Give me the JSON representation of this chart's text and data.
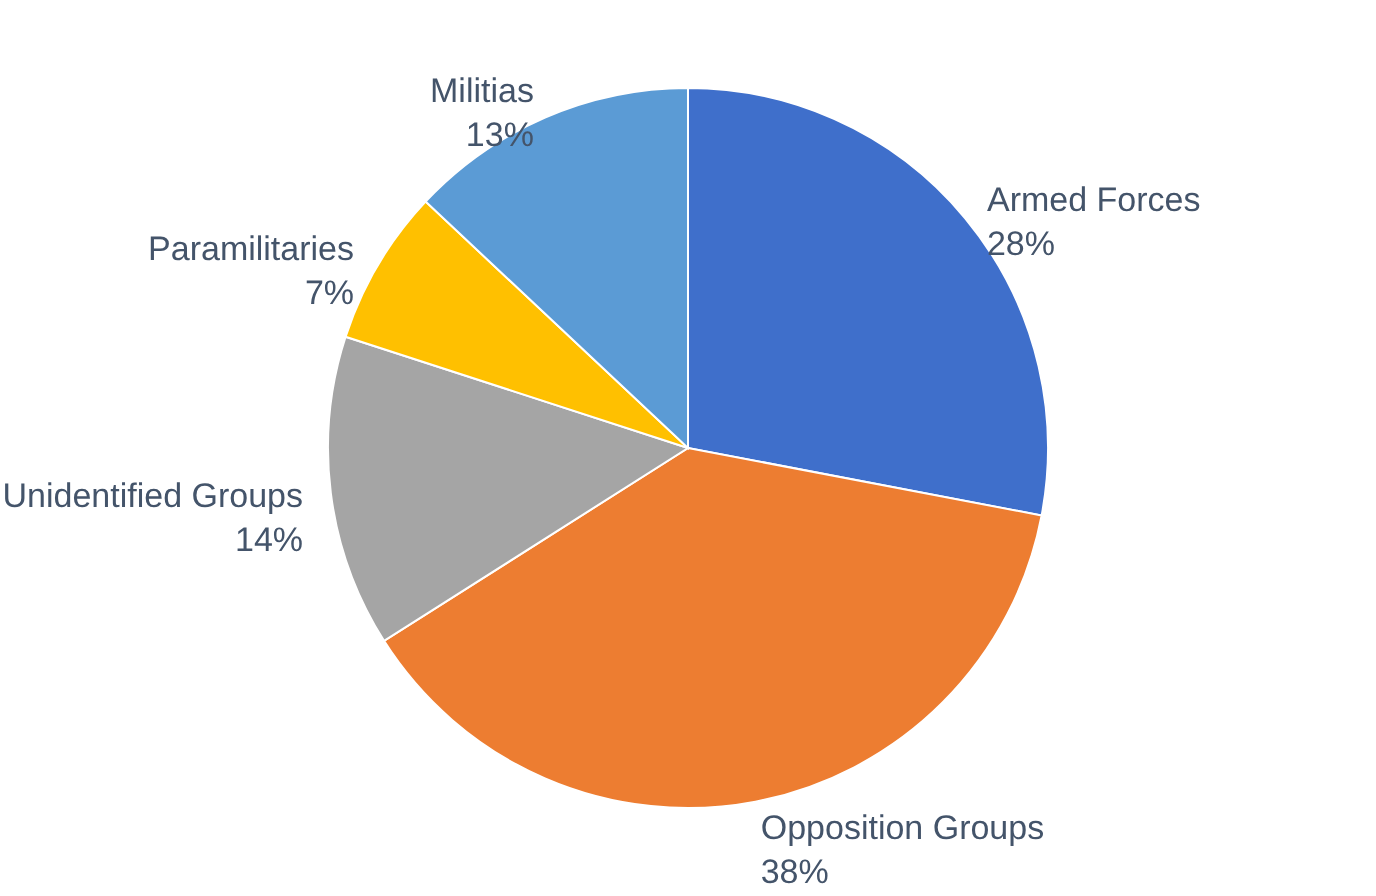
{
  "chart_data": {
    "type": "pie",
    "categories": [
      "Armed Forces",
      "Opposition Groups",
      "Unidentified Groups",
      "Paramilitaries",
      "Militias"
    ],
    "values": [
      28,
      38,
      14,
      7,
      13
    ],
    "value_labels": [
      "28%",
      "38%",
      "14%",
      "7%",
      "13%"
    ],
    "colors": [
      "#3f6fcb",
      "#ed7d31",
      "#a5a5a5",
      "#ffc000",
      "#5b9bd5"
    ]
  }
}
